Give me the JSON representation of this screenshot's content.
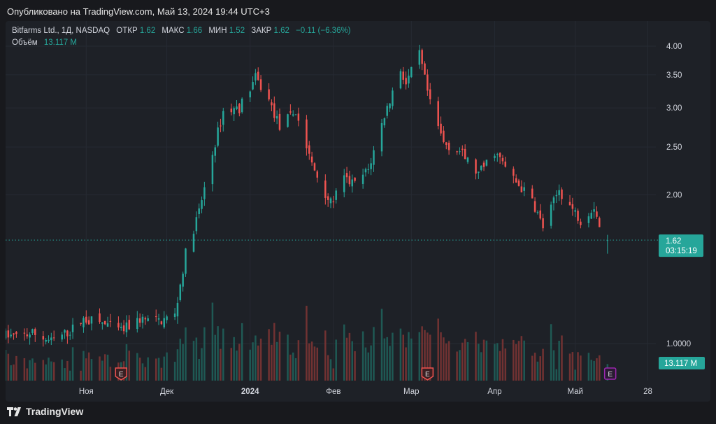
{
  "published": "Опубликовано на TradingView.com, Май 13, 2024 19:44 UTC+3",
  "brand": {
    "name": "TradingView",
    "logo_icon": "tradingview-logo-icon"
  },
  "legend": {
    "symbol": "Bitfarms Ltd., 1Д, NASDAQ",
    "open_label": "ОТКР",
    "open": "1.62",
    "high_label": "МАКС",
    "high": "1.66",
    "low_label": "МИН",
    "low": "1.52",
    "close_label": "ЗАКР",
    "close": "1.62",
    "change": "−0.11 (−6.36%)",
    "volume_label": "Объём",
    "volume": "13.117 M"
  },
  "colors": {
    "up": "#26a69a",
    "down": "#ef5350",
    "earnings": "#ef5350",
    "earnings_upcoming": "#9c27b0",
    "price_line": "#26a69a"
  },
  "chart_data": {
    "type": "candlestick",
    "scale": "log",
    "price_range": [
      0.9,
      4.3
    ],
    "y_ticks": [
      "4.00",
      "3.50",
      "3.00",
      "2.50",
      "2.00",
      "1.0000"
    ],
    "y_tick_values": [
      4.0,
      3.5,
      3.0,
      2.5,
      2.0,
      1.0
    ],
    "x_ticks": [
      {
        "label": "Ноя",
        "date": "2023-11-01"
      },
      {
        "label": "Дек",
        "date": "2023-12-01"
      },
      {
        "label": "2024",
        "date": "2024-01-01",
        "bold": true
      },
      {
        "label": "Фев",
        "date": "2024-02-01"
      },
      {
        "label": "Мар",
        "date": "2024-03-01"
      },
      {
        "label": "Апр",
        "date": "2024-04-01"
      },
      {
        "label": "Май",
        "date": "2024-05-01"
      },
      {
        "label": "28",
        "date": "2024-05-28"
      }
    ],
    "start_date": "2023-10-02",
    "end_date": "2024-05-31",
    "last_price": {
      "value": "1.62",
      "countdown": "03:15:19"
    },
    "volume_badge": "13.117 M",
    "earnings": [
      {
        "date": "2023-11-14",
        "label": "E"
      },
      {
        "date": "2024-03-07",
        "label": "E"
      },
      {
        "date": "2024-05-14",
        "label": "E",
        "upcoming": true
      }
    ],
    "keypoints": [
      [
        "2023-10-02",
        1.04
      ],
      [
        "2023-10-06",
        1.03
      ],
      [
        "2023-10-12",
        1.05
      ],
      [
        "2023-10-19",
        1.01
      ],
      [
        "2023-10-26",
        1.06
      ],
      [
        "2023-10-31",
        1.12
      ],
      [
        "2023-11-07",
        1.1
      ],
      [
        "2023-11-14",
        1.06
      ],
      [
        "2023-11-21",
        1.12
      ],
      [
        "2023-11-28",
        1.11
      ],
      [
        "2023-12-04",
        1.14
      ],
      [
        "2023-12-08",
        1.52
      ],
      [
        "2023-12-13",
        1.85
      ],
      [
        "2023-12-19",
        2.55
      ],
      [
        "2023-12-22",
        2.95
      ],
      [
        "2023-12-28",
        3.0
      ],
      [
        "2024-01-03",
        3.45
      ],
      [
        "2024-01-08",
        3.1
      ],
      [
        "2024-01-12",
        2.75
      ],
      [
        "2024-01-18",
        2.95
      ],
      [
        "2024-01-24",
        2.3
      ],
      [
        "2024-01-31",
        1.92
      ],
      [
        "2024-02-05",
        2.15
      ],
      [
        "2024-02-09",
        2.1
      ],
      [
        "2024-02-14",
        2.25
      ],
      [
        "2024-02-20",
        2.9
      ],
      [
        "2024-02-26",
        3.6
      ],
      [
        "2024-02-28",
        3.35
      ],
      [
        "2024-03-04",
        3.85
      ],
      [
        "2024-03-08",
        3.05
      ],
      [
        "2024-03-13",
        2.55
      ],
      [
        "2024-03-19",
        2.45
      ],
      [
        "2024-03-26",
        2.2
      ],
      [
        "2024-04-01",
        2.45
      ],
      [
        "2024-04-08",
        2.15
      ],
      [
        "2024-04-15",
        1.95
      ],
      [
        "2024-04-19",
        1.72
      ],
      [
        "2024-04-25",
        2.05
      ],
      [
        "2024-04-29",
        1.9
      ],
      [
        "2024-05-03",
        1.78
      ],
      [
        "2024-05-08",
        1.9
      ],
      [
        "2024-05-10",
        1.73
      ],
      [
        "2024-05-13",
        1.62
      ]
    ]
  }
}
